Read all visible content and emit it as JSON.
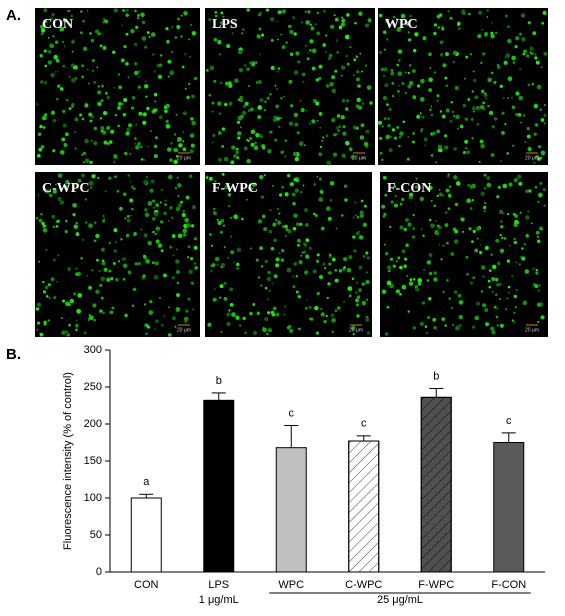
{
  "panel_labels": [
    "A.",
    "B."
  ],
  "images": [
    {
      "label": "CON",
      "scale": "20 μm"
    },
    {
      "label": "LPS",
      "scale": "20 μm"
    },
    {
      "label": "WPC",
      "scale": "20 μm"
    },
    {
      "label": "C-WPC",
      "scale": "20 μm"
    },
    {
      "label": "F-WPC",
      "scale": "20 μm"
    },
    {
      "label": "F-CON",
      "scale": "20 μm"
    }
  ],
  "chart_data": {
    "type": "bar",
    "y_label": "Fluorescence intensity (% of control)",
    "categories": [
      "CON",
      "LPS",
      "WPC",
      "C-WPC",
      "F-WPC",
      "F-CON"
    ],
    "values": [
      100,
      232,
      168,
      177,
      236,
      175
    ],
    "errors": [
      5,
      10,
      30,
      7,
      12,
      13
    ],
    "annotations": [
      "a",
      "b",
      "c",
      "c",
      "b",
      "c"
    ],
    "colors": [
      "#ffffff",
      "#000000",
      "#c0c0c0",
      "#ffffff",
      "#505050",
      "#5a5a5a"
    ],
    "hatched": [
      false,
      false,
      false,
      true,
      true,
      false
    ],
    "groups": [
      {
        "text": "1 μg/mL",
        "span": [
          1,
          1
        ]
      },
      {
        "text": "25 μg/mL",
        "span": [
          2,
          5
        ]
      }
    ],
    "ylim": [
      0,
      300
    ],
    "yticks": [
      0,
      50,
      100,
      150,
      200,
      250,
      300
    ],
    "grid": false
  }
}
